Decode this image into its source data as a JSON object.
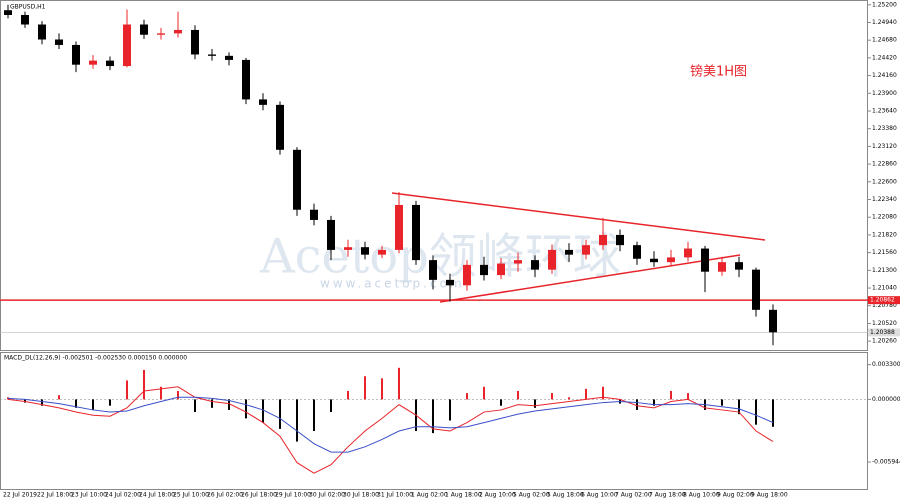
{
  "chart_data": [
    {
      "type": "candlestick",
      "title": "GBPUSD,H1",
      "annotation": "镑美1H图",
      "watermark": "Acetop领峰环球",
      "watermark_url": "www.acetop.com",
      "categories": [
        "22 Jul 2019",
        null,
        "22 Jul 18:00",
        null,
        "23 Jul 10:00",
        null,
        "24 Jul 02:00",
        null,
        "24 Jul 18:00",
        null,
        "25 Jul 10:00",
        null,
        "26 Jul 02:00",
        null,
        "26 Jul 18:00",
        null,
        "29 Jul 10:00",
        null,
        "30 Jul 02:00",
        null,
        "30 Jul 18:00",
        null,
        "31 Jul 10:00",
        null,
        "1 Aug 02:00",
        null,
        "1 Aug 18:00",
        null,
        "2 Aug 10:00",
        null,
        "5 Aug 02:00",
        null,
        "5 Aug 18:00",
        null,
        "6 Aug 10:00",
        null,
        "7 Aug 02:00",
        null,
        "7 Aug 18:00",
        null,
        "8 Aug 10:00",
        null,
        "9 Aug 02:00",
        null,
        "9 Aug 18:00",
        null
      ],
      "open": [
        1.2512,
        1.2505,
        1.2491,
        1.2469,
        1.2461,
        1.2432,
        1.2438,
        1.243,
        1.2491,
        1.2476,
        1.2478,
        1.2483,
        1.2447,
        1.2445,
        1.2439,
        1.2381,
        1.2373,
        1.2307,
        1.2219,
        1.2204,
        1.216,
        1.2164,
        1.2153,
        1.216,
        1.2226,
        1.2145,
        1.2116,
        1.2108,
        1.2138,
        1.2123,
        1.214,
        1.2145,
        1.2131,
        1.216,
        1.2153,
        1.2167,
        1.2182,
        1.2167,
        1.2147,
        1.2142,
        1.2149,
        1.2162,
        1.2128,
        1.2142,
        1.2131,
        1.2072
      ],
      "high": [
        1.252,
        1.251,
        1.2496,
        1.2478,
        1.2466,
        1.2446,
        1.2444,
        1.2513,
        1.2498,
        1.2486,
        1.251,
        1.249,
        1.2455,
        1.245,
        1.2442,
        1.239,
        1.2378,
        1.2311,
        1.2228,
        1.221,
        1.2175,
        1.2172,
        1.2166,
        1.2245,
        1.2232,
        1.2152,
        1.2125,
        1.2145,
        1.215,
        1.2148,
        1.2156,
        1.2152,
        1.2168,
        1.217,
        1.2175,
        1.2207,
        1.219,
        1.2172,
        1.2158,
        1.216,
        1.2172,
        1.2166,
        1.215,
        1.215,
        1.2134,
        1.208
      ],
      "low": [
        1.25,
        1.2486,
        1.2462,
        1.2455,
        1.2421,
        1.2426,
        1.2424,
        1.2428,
        1.247,
        1.2469,
        1.2472,
        1.244,
        1.2438,
        1.2431,
        1.2374,
        1.2365,
        1.23,
        1.221,
        1.2196,
        1.2145,
        1.215,
        1.2146,
        1.2148,
        1.2155,
        1.2138,
        1.2102,
        1.2084,
        1.21,
        1.2115,
        1.2117,
        1.2128,
        1.212,
        1.2125,
        1.2142,
        1.2146,
        1.216,
        1.2158,
        1.2138,
        1.2135,
        1.2136,
        1.2143,
        1.2098,
        1.2122,
        1.212,
        1.2062,
        1.202
      ],
      "close": [
        1.2505,
        1.2491,
        1.2469,
        1.2461,
        1.2432,
        1.2438,
        1.243,
        1.2491,
        1.2476,
        1.2478,
        1.2483,
        1.2447,
        1.2445,
        1.2439,
        1.2381,
        1.2373,
        1.2307,
        1.2219,
        1.2204,
        1.216,
        1.2164,
        1.2153,
        1.216,
        1.2226,
        1.2145,
        1.2116,
        1.2108,
        1.2138,
        1.2123,
        1.214,
        1.2145,
        1.2131,
        1.216,
        1.2153,
        1.2167,
        1.2182,
        1.2167,
        1.2147,
        1.2142,
        1.2149,
        1.2162,
        1.2128,
        1.2142,
        1.2131,
        1.2072,
        1.2039
      ],
      "up_color": "#e8242a",
      "down_color": "#000000",
      "ylim": [
        1.2013,
        1.2527
      ],
      "yticks": [
        {
          "value": 1.252,
          "label": "1.25200"
        },
        {
          "value": 1.2494,
          "label": "1.24940"
        },
        {
          "value": 1.2468,
          "label": "1.24680"
        },
        {
          "value": 1.2442,
          "label": "1.24420"
        },
        {
          "value": 1.2416,
          "label": "1.24160"
        },
        {
          "value": 1.239,
          "label": "1.23900"
        },
        {
          "value": 1.2364,
          "label": "1.23640"
        },
        {
          "value": 1.2338,
          "label": "1.23380"
        },
        {
          "value": 1.2312,
          "label": "1.23120"
        },
        {
          "value": 1.2286,
          "label": "1.22860"
        },
        {
          "value": 1.226,
          "label": "1.22600"
        },
        {
          "value": 1.2234,
          "label": "1.22340"
        },
        {
          "value": 1.2208,
          "label": "1.22080"
        },
        {
          "value": 1.2182,
          "label": "1.21820"
        },
        {
          "value": 1.2156,
          "label": "1.21560"
        },
        {
          "value": 1.213,
          "label": "1.21300"
        },
        {
          "value": 1.2104,
          "label": "1.21040"
        },
        {
          "value": 1.2078,
          "label": "1.20780"
        },
        {
          "value": 1.2052,
          "label": "1.20520"
        },
        {
          "value": 1.2026,
          "label": "1.20260"
        }
      ],
      "hline": {
        "value": 1.20862,
        "color": "#e8242a"
      },
      "last_price": 1.20388
    },
    {
      "type": "macd",
      "label": "MACD_DL(12,26,9) -0.002501 -0.002530 0.000150 0.000000",
      "histogram": {
        "up_color": "#e8242a",
        "down_color": "#000000",
        "values": [
          0.0002,
          -0.0003,
          -0.0006,
          0.0004,
          -0.0008,
          -0.001,
          -0.0006,
          0.0018,
          0.0028,
          0.0012,
          0.0008,
          -0.0012,
          -0.0008,
          -0.001,
          -0.0018,
          -0.0022,
          -0.0028,
          -0.004,
          -0.003,
          -0.0012,
          0.0008,
          0.0022,
          0.002,
          0.003,
          -0.003,
          -0.0032,
          -0.002,
          0.0006,
          0.0012,
          -0.0006,
          0.0008,
          -0.0008,
          0.0006,
          0.0002,
          0.001,
          0.0012,
          -0.0004,
          -0.001,
          -0.0006,
          0.0008,
          0.0006,
          -0.001,
          -0.0006,
          -0.0014,
          -0.0024,
          -0.0026
        ]
      },
      "macd_line": {
        "color": "#e8242a",
        "values": [
          0.0,
          -0.0002,
          -0.0005,
          -0.0008,
          -0.0012,
          -0.0015,
          -0.0016,
          -0.0008,
          0.0008,
          0.001,
          0.0012,
          0.0002,
          -0.0002,
          -0.0004,
          -0.0012,
          -0.0022,
          -0.0035,
          -0.006,
          -0.007,
          -0.0062,
          -0.0045,
          -0.003,
          -0.0018,
          -0.0005,
          -0.0015,
          -0.0028,
          -0.003,
          -0.0022,
          -0.0012,
          -0.001,
          -0.0005,
          -0.0006,
          -0.0004,
          -0.0002,
          0.0,
          0.0002,
          0.0,
          -0.0006,
          -0.0008,
          -0.0002,
          0.0,
          -0.0008,
          -0.001,
          -0.0012,
          -0.003,
          -0.004
        ]
      },
      "signal_line": {
        "color": "#3a4fc8",
        "values": [
          0.0001,
          0.0,
          -0.0002,
          -0.0004,
          -0.0007,
          -0.001,
          -0.0012,
          -0.0011,
          -0.0006,
          -0.0002,
          0.0002,
          0.0002,
          0.0001,
          -0.0001,
          -0.0005,
          -0.001,
          -0.0018,
          -0.003,
          -0.0042,
          -0.005,
          -0.005,
          -0.0045,
          -0.0038,
          -0.003,
          -0.0026,
          -0.0026,
          -0.0027,
          -0.0026,
          -0.0022,
          -0.0018,
          -0.0014,
          -0.0011,
          -0.0009,
          -0.0007,
          -0.0005,
          -0.0003,
          -0.0002,
          -0.0003,
          -0.0005,
          -0.0005,
          -0.0004,
          -0.0005,
          -0.0007,
          -0.0009,
          -0.0015,
          -0.0022
        ]
      },
      "ylim": [
        -0.0086,
        0.0045
      ],
      "yticks": [
        {
          "value": 0.0033,
          "label": "0.003300"
        },
        {
          "value": 0,
          "label": "0.000000"
        },
        {
          "value": -0.005944,
          "label": "-0.005944"
        }
      ]
    }
  ]
}
